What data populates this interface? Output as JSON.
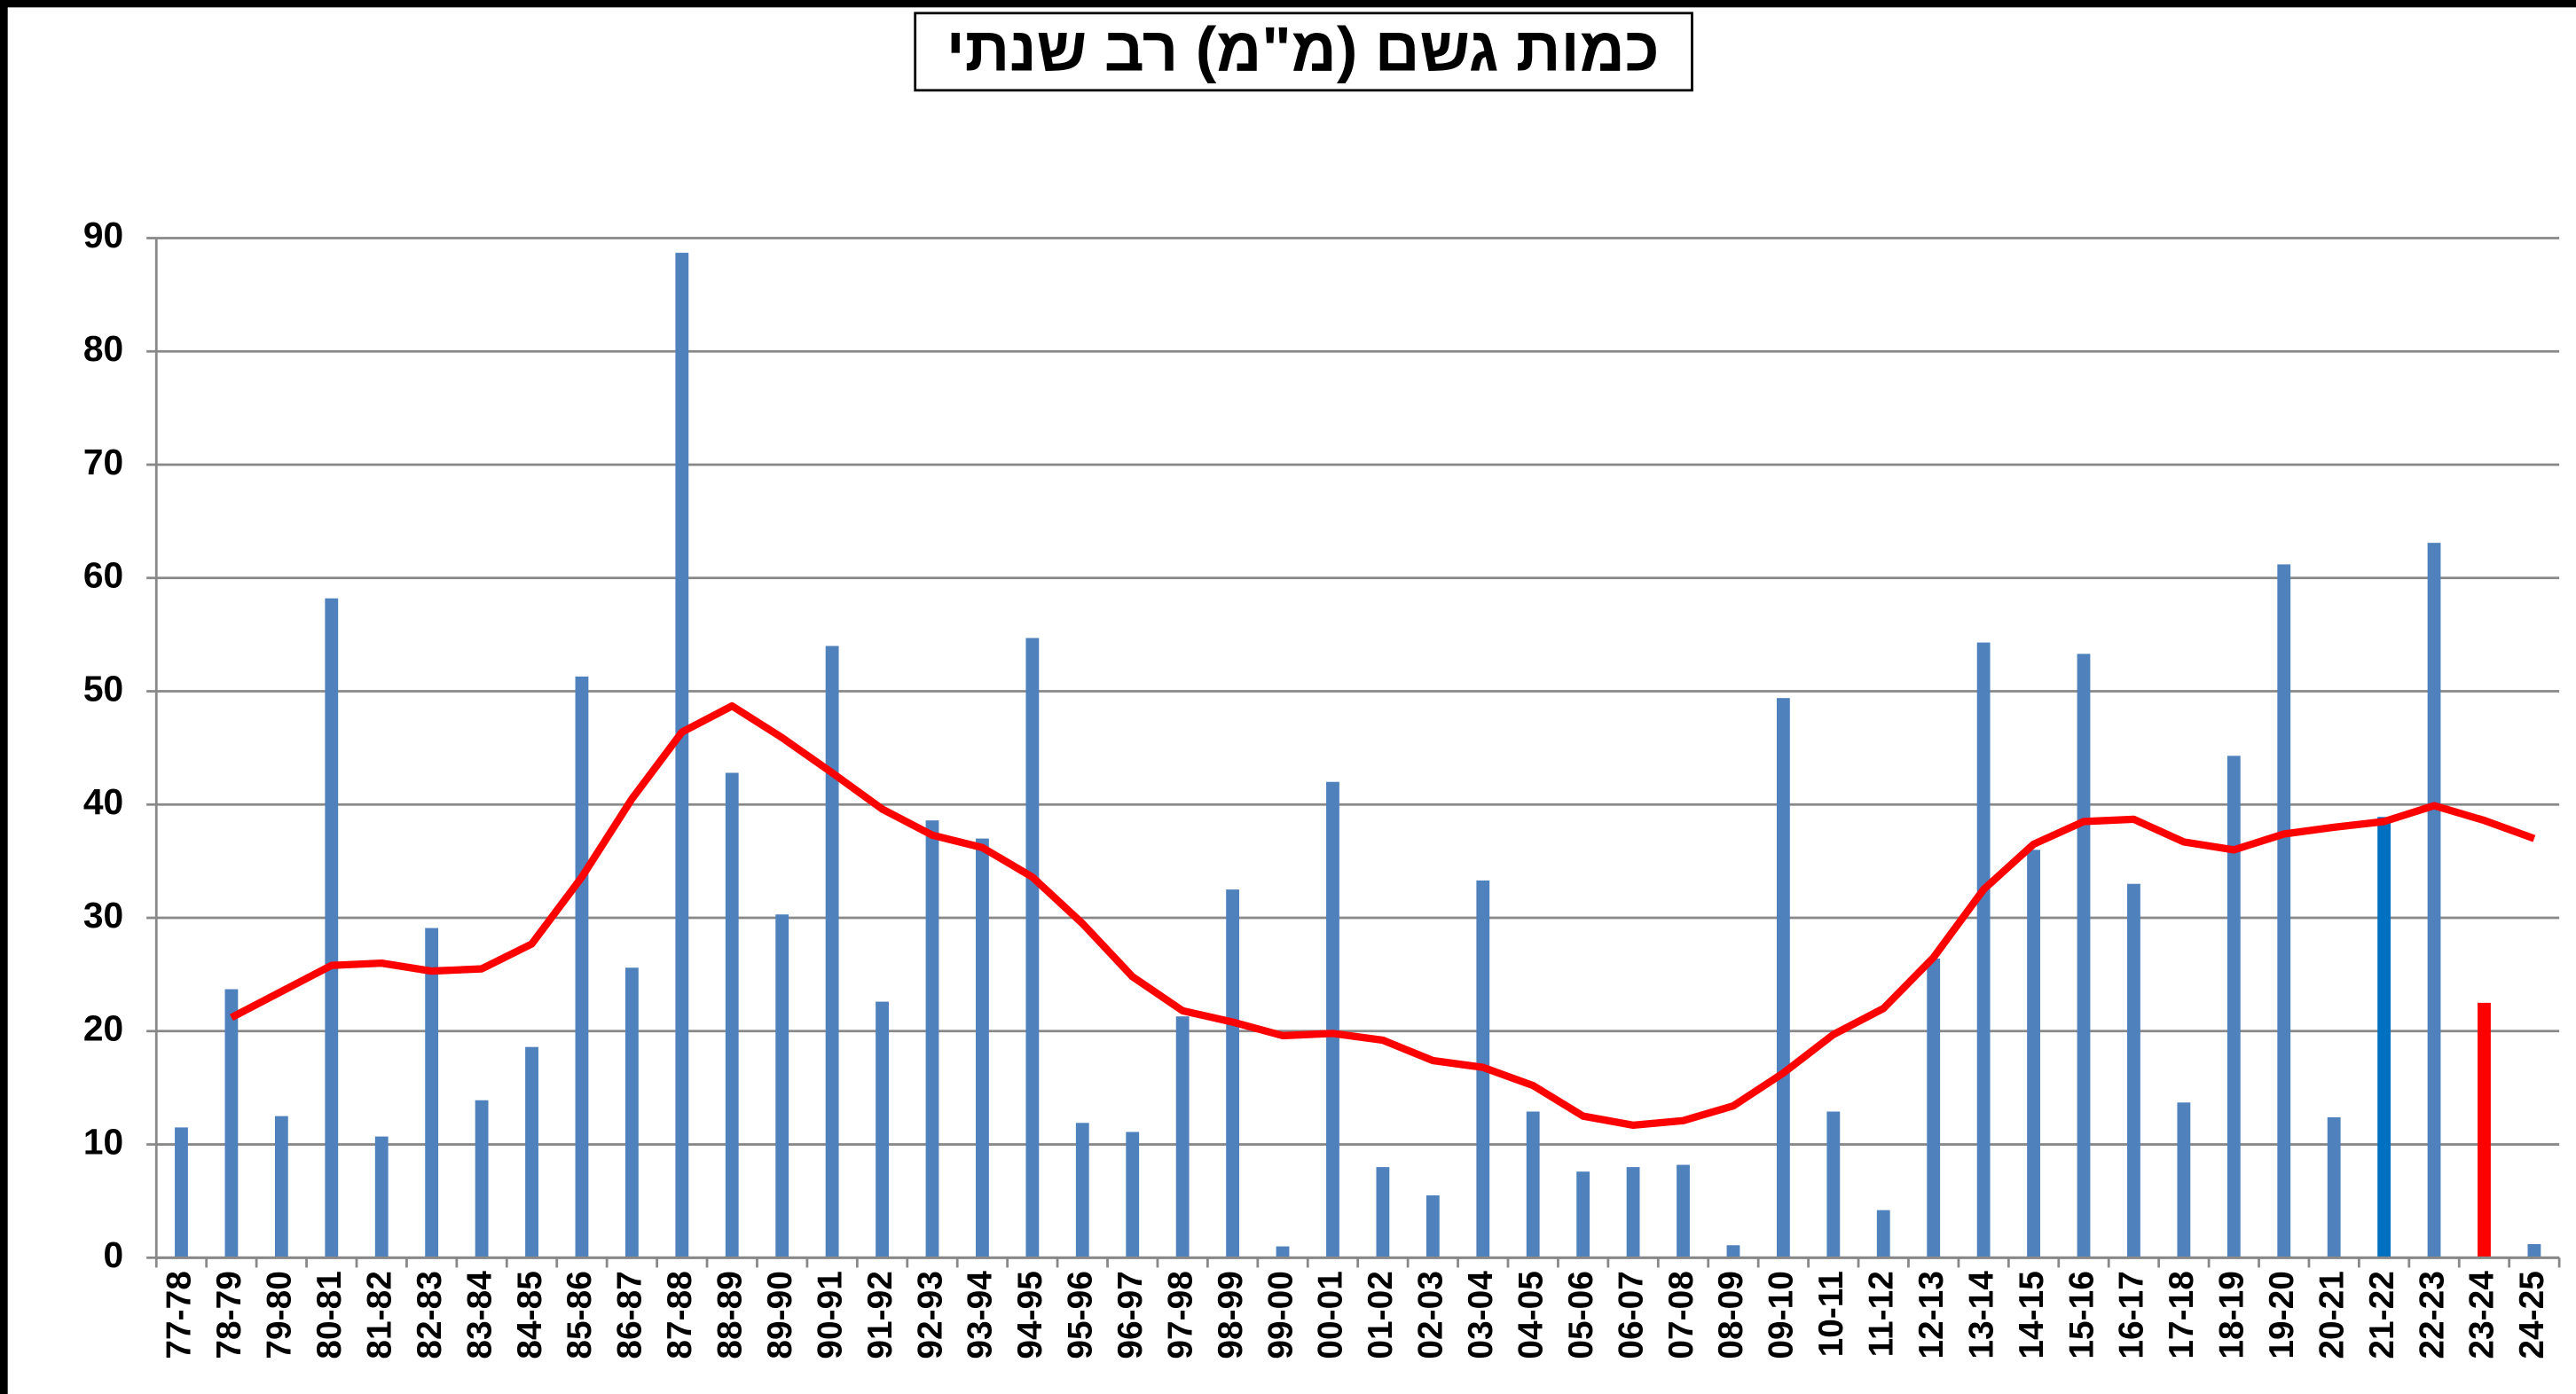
{
  "chart_data": {
    "type": "bar",
    "title": "כמות גשם (מ\"מ) רב שנתי",
    "categories": [
      "77-78",
      "78-79",
      "79-80",
      "80-81",
      "81-82",
      "82-83",
      "83-84",
      "84-85",
      "85-86",
      "86-87",
      "87-88",
      "88-89",
      "89-90",
      "90-91",
      "91-92",
      "92-93",
      "93-94",
      "94-95",
      "95-96",
      "96-97",
      "97-98",
      "98-99",
      "99-00",
      "00-01",
      "01-02",
      "02-03",
      "03-04",
      "04-05",
      "05-06",
      "06-07",
      "07-08",
      "08-09",
      "09-10",
      "10-11",
      "11-12",
      "12-13",
      "13-14",
      "14-15",
      "15-16",
      "16-17",
      "17-18",
      "18-19",
      "19-20",
      "20-21",
      "21-22",
      "22-23",
      "23-24",
      "24-25"
    ],
    "series": [
      {
        "type": "bar",
        "colors": [
          "#4f81bd",
          "#4f81bd",
          "#4f81bd",
          "#4f81bd",
          "#4f81bd",
          "#4f81bd",
          "#4f81bd",
          "#4f81bd",
          "#4f81bd",
          "#4f81bd",
          "#4f81bd",
          "#4f81bd",
          "#4f81bd",
          "#4f81bd",
          "#4f81bd",
          "#4f81bd",
          "#4f81bd",
          "#4f81bd",
          "#4f81bd",
          "#4f81bd",
          "#4f81bd",
          "#4f81bd",
          "#4f81bd",
          "#4f81bd",
          "#4f81bd",
          "#4f81bd",
          "#4f81bd",
          "#4f81bd",
          "#4f81bd",
          "#4f81bd",
          "#4f81bd",
          "#4f81bd",
          "#4f81bd",
          "#4f81bd",
          "#4f81bd",
          "#4f81bd",
          "#4f81bd",
          "#4f81bd",
          "#4f81bd",
          "#4f81bd",
          "#4f81bd",
          "#4f81bd",
          "#4f81bd",
          "#4f81bd",
          "#0070c0",
          "#4f81bd",
          "#ff0000",
          "#4f81bd"
        ],
        "values": [
          11.5,
          23.7,
          12.5,
          58.2,
          10.7,
          29.1,
          13.9,
          18.6,
          51.3,
          25.6,
          88.7,
          42.8,
          30.3,
          54.0,
          22.6,
          38.6,
          37.0,
          54.7,
          11.9,
          11.1,
          21.3,
          32.5,
          1.0,
          42.0,
          8.0,
          5.5,
          33.3,
          12.9,
          7.6,
          8.0,
          8.2,
          1.1,
          49.4,
          12.9,
          4.2,
          26.4,
          54.3,
          36.0,
          53.3,
          33.0,
          13.7,
          44.3,
          61.2,
          12.4,
          38.9,
          63.1,
          22.5,
          1.2
        ]
      },
      {
        "type": "line",
        "color": "#ff0000",
        "values": [
          null,
          21.2,
          23.5,
          25.8,
          26.0,
          25.3,
          25.5,
          27.7,
          33.6,
          40.5,
          46.4,
          48.7,
          45.9,
          42.8,
          39.6,
          37.3,
          36.2,
          33.6,
          29.5,
          24.8,
          21.8,
          20.8,
          19.6,
          19.8,
          19.2,
          17.4,
          16.8,
          15.2,
          12.5,
          11.7,
          12.1,
          13.4,
          16.3,
          19.7,
          22.0,
          26.5,
          32.5,
          36.5,
          38.5,
          38.7,
          36.7,
          36.0,
          37.4,
          38.0,
          38.5,
          39.9,
          38.6,
          37.0
        ]
      }
    ],
    "ylim": [
      0,
      90
    ],
    "yticks": [
      0,
      10,
      20,
      30,
      40,
      50,
      60,
      70,
      80,
      90
    ],
    "grid": true
  }
}
